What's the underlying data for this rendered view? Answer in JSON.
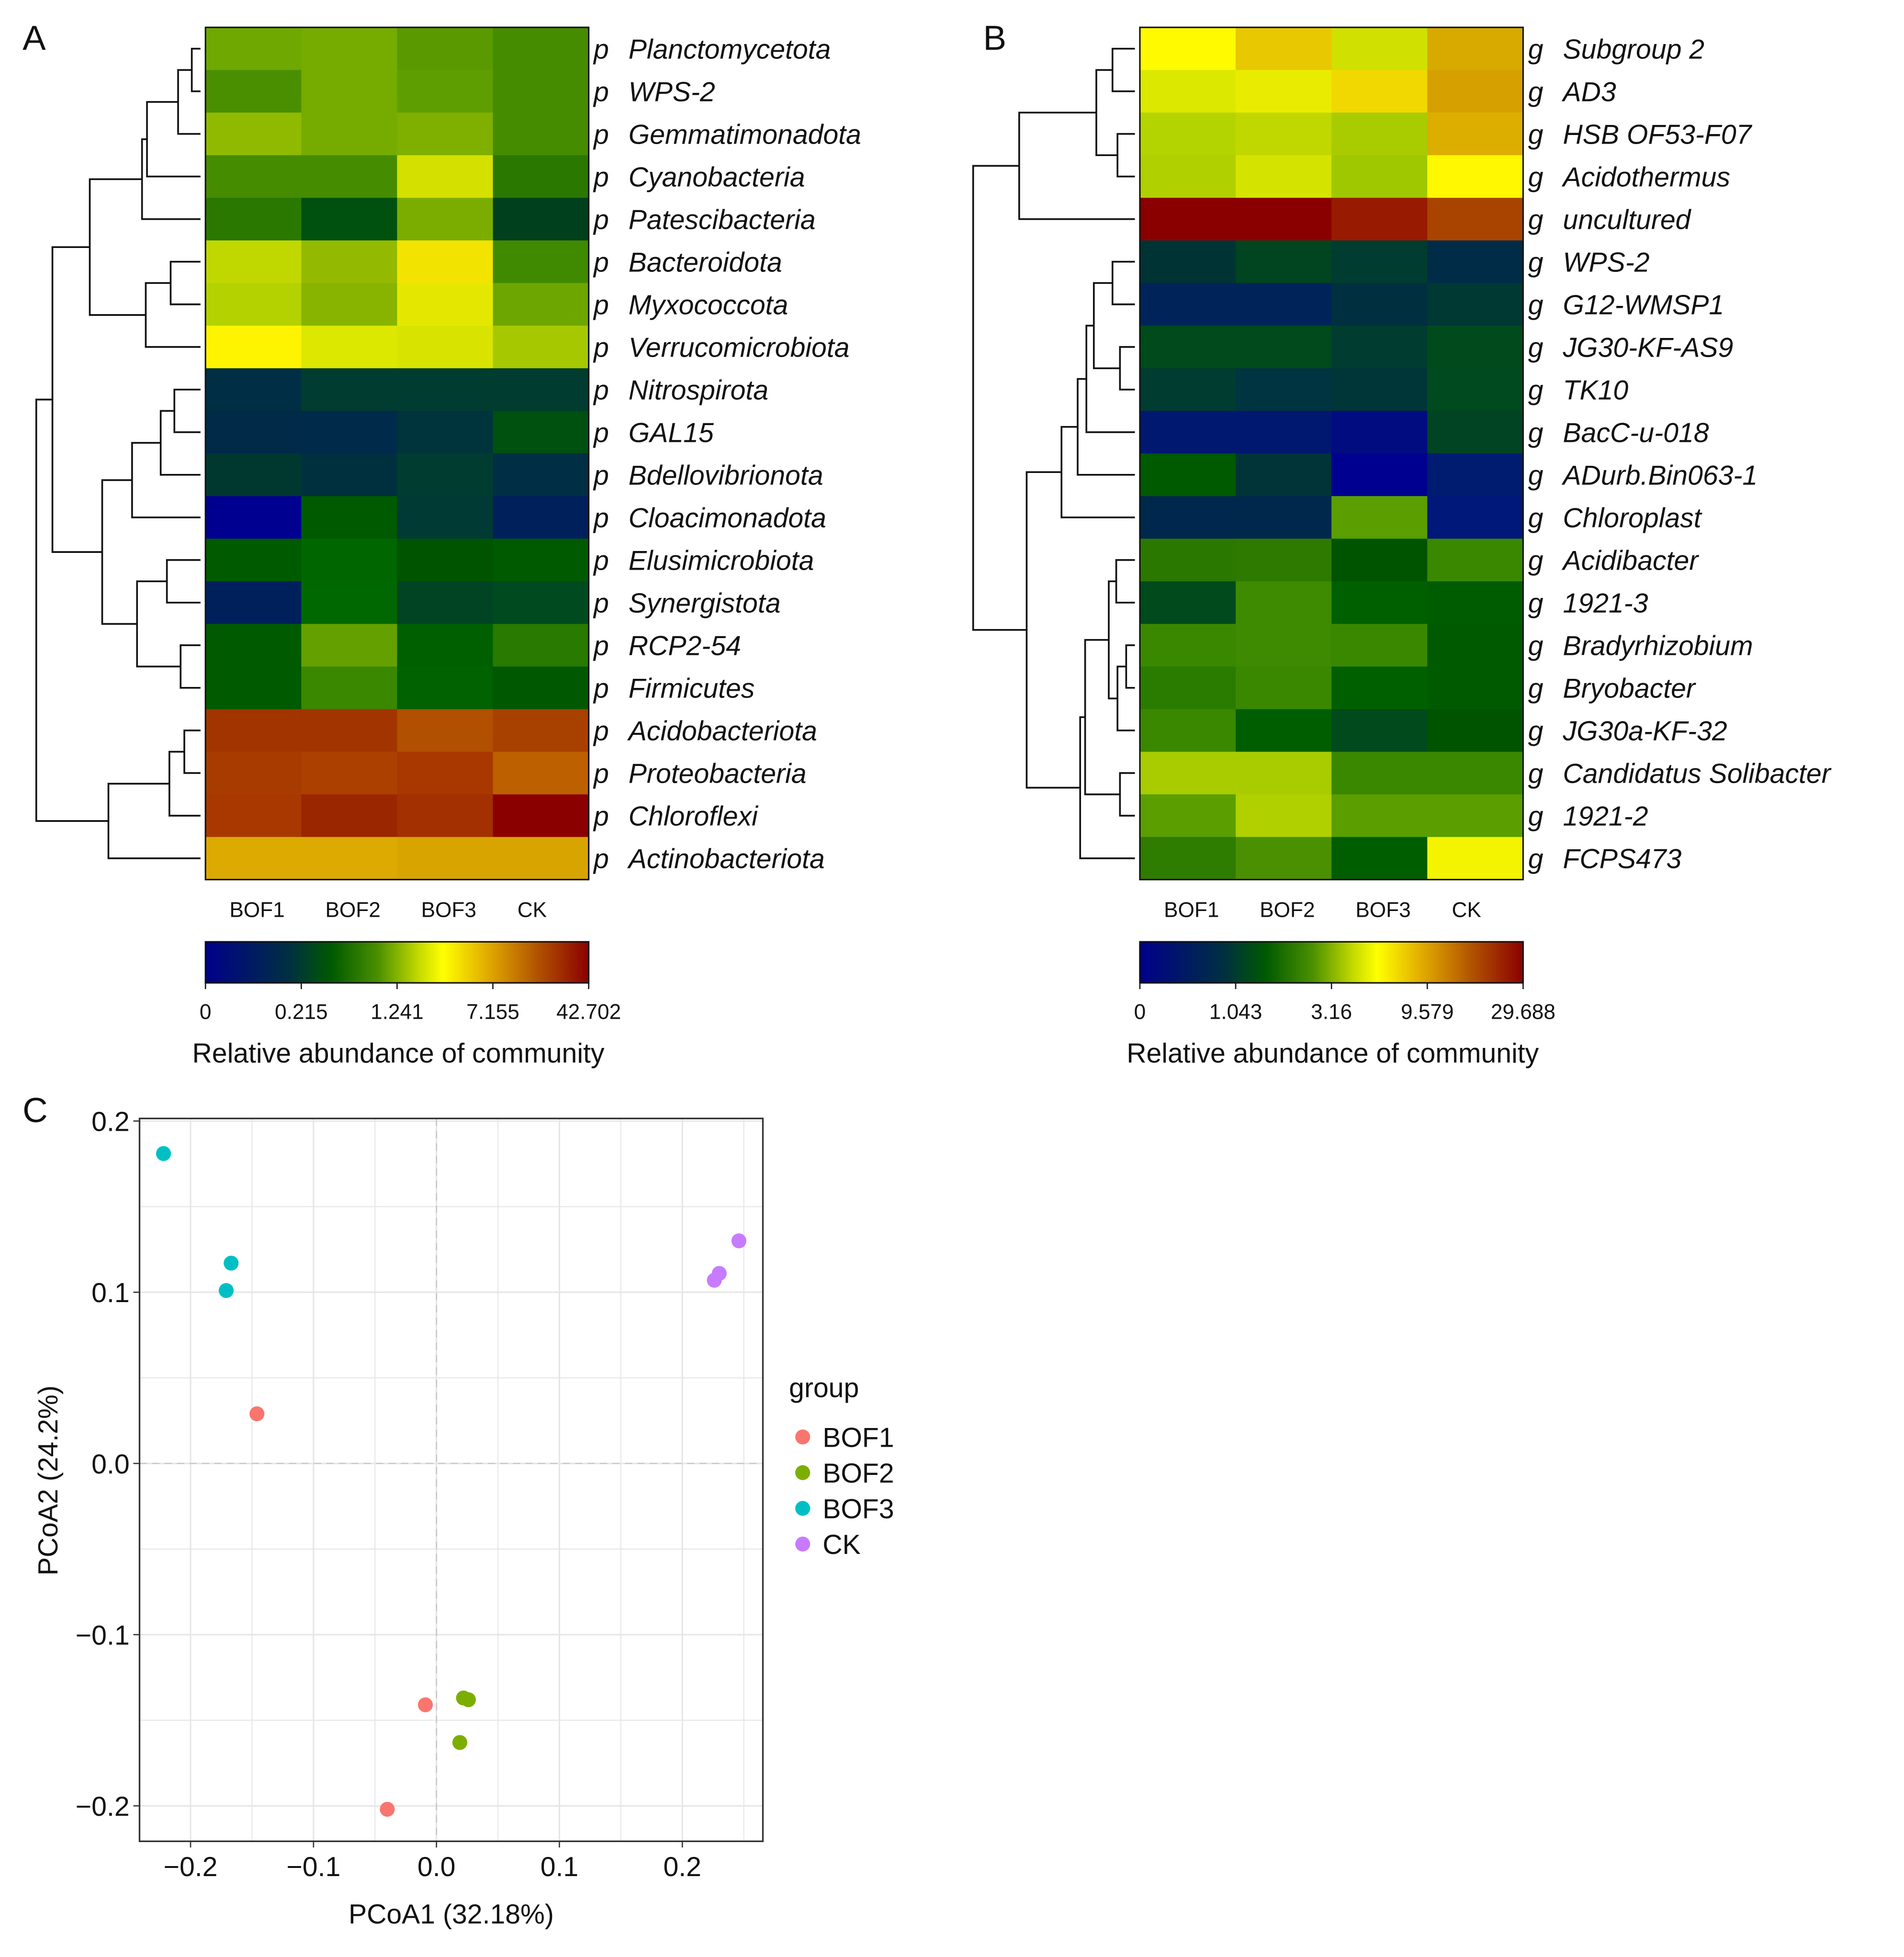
{
  "panel_labels": {
    "a": "A",
    "b": "B",
    "c": "C"
  },
  "chart_data": [
    {
      "type": "heatmap",
      "panel": "A",
      "columns": [
        "BOF1",
        "BOF2",
        "BOF3",
        "CK"
      ],
      "row_prefix": "p",
      "rows": [
        "Planctomycetota",
        "WPS-2",
        "Gemmatimonadota",
        "Cyanobacteria",
        "Patescibacteria",
        "Bacteroidota",
        "Myxococcota",
        "Verrucomicrobiota",
        "Nitrospirota",
        "GAL15",
        "Bdellovibrionota",
        "Cloacimonadota",
        "Elusimicrobiota",
        "Synergistota",
        "RCP2-54",
        "Firmicutes",
        "Acidobacteriota",
        "Proteobacteria",
        "Chloroflexi",
        "Actinobacteriota"
      ],
      "cell_colors": [
        [
          "#6fa800",
          "#76ab00",
          "#5a9a00",
          "#468c00"
        ],
        [
          "#4a8f00",
          "#76ab00",
          "#5e9e00",
          "#468c00"
        ],
        [
          "#90ba00",
          "#76ab00",
          "#7fb000",
          "#468c00"
        ],
        [
          "#468c00",
          "#468c00",
          "#d4e000",
          "#2a7800"
        ],
        [
          "#2a7800",
          "#005010",
          "#7aad00",
          "#00401c"
        ],
        [
          "#c0d800",
          "#94ba00",
          "#f2e400",
          "#3f8a00"
        ],
        [
          "#b4d200",
          "#88b400",
          "#e4e800",
          "#6ea600"
        ],
        [
          "#fff400",
          "#dce800",
          "#d8e400",
          "#a6c800"
        ],
        [
          "#002e44",
          "#003c30",
          "#003c30",
          "#003c30"
        ],
        [
          "#002a48",
          "#002a4a",
          "#00343c",
          "#005010"
        ],
        [
          "#003830",
          "#00303e",
          "#003c30",
          "#002e44"
        ],
        [
          "#000090",
          "#005a00",
          "#003a34",
          "#00205c"
        ],
        [
          "#005a00",
          "#006600",
          "#005400",
          "#005a00"
        ],
        [
          "#00205c",
          "#006800",
          "#004424",
          "#004a20"
        ],
        [
          "#005a00",
          "#64a000",
          "#006000",
          "#287a00"
        ],
        [
          "#005a00",
          "#3a8800",
          "#006200",
          "#005800"
        ],
        [
          "#a23400",
          "#a23400",
          "#b05000",
          "#a84000"
        ],
        [
          "#a83c00",
          "#ac4000",
          "#a83800",
          "#bc6000"
        ],
        [
          "#a83800",
          "#9a2600",
          "#a23000",
          "#8a0000"
        ],
        [
          "#dcaa00",
          "#dcaa00",
          "#d8a400",
          "#d8a400"
        ]
      ],
      "colorbar": {
        "ticks": [
          "0",
          "0.215",
          "1.241",
          "7.155",
          "42.702"
        ],
        "title": "Relative abundance of community"
      }
    },
    {
      "type": "heatmap",
      "panel": "B",
      "columns": [
        "BOF1",
        "BOF2",
        "BOF3",
        "CK"
      ],
      "row_prefix": "g",
      "rows": [
        "Subgroup 2",
        "AD3",
        "HSB OF53-F07",
        "Acidothermus",
        "uncultured",
        "WPS-2",
        "G12-WMSP1",
        "JG30-KF-AS9",
        "TK10",
        "BacC-u-018",
        "ADurb.Bin063-1",
        "Chloroplast",
        "Acidibacter",
        "1921-3",
        "Bradyrhizobium",
        "Bryobacter",
        "JG30a-KF-32",
        "Candidatus Solibacter",
        "1921-2",
        "FCPS473"
      ],
      "cell_colors": [
        [
          "#fffa00",
          "#e8c800",
          "#d0e000",
          "#d8aa00"
        ],
        [
          "#dce800",
          "#eaec00",
          "#f0d800",
          "#d6a000"
        ],
        [
          "#b4d400",
          "#c0d800",
          "#a8cc00",
          "#dcae00"
        ],
        [
          "#b0d000",
          "#d4e400",
          "#a0c800",
          "#fff800"
        ],
        [
          "#8a0000",
          "#8a0000",
          "#981a00",
          "#a84400"
        ],
        [
          "#003434",
          "#004420",
          "#003c30",
          "#002c48"
        ],
        [
          "#00245a",
          "#00245a",
          "#003040",
          "#003834"
        ],
        [
          "#004a1c",
          "#004a1c",
          "#003c30",
          "#004a1c"
        ],
        [
          "#003c30",
          "#003440",
          "#003638",
          "#004a20"
        ],
        [
          "#001870",
          "#001870",
          "#000c80",
          "#004424"
        ],
        [
          "#005a00",
          "#003438",
          "#000090",
          "#001c70"
        ],
        [
          "#00284c",
          "#00284c",
          "#5a9e00",
          "#00187a"
        ],
        [
          "#2a7800",
          "#2e7a00",
          "#005400",
          "#3a8800"
        ],
        [
          "#004a1c",
          "#3e8a00",
          "#006000",
          "#005c00"
        ],
        [
          "#3a8800",
          "#3e8a00",
          "#3a8800",
          "#005a00"
        ],
        [
          "#2a7c00",
          "#3a8800",
          "#006000",
          "#005a00"
        ],
        [
          "#3a8800",
          "#005e00",
          "#004a1c",
          "#005400"
        ],
        [
          "#a8cc00",
          "#a8cc00",
          "#3a8800",
          "#3a8800"
        ],
        [
          "#5a9e00",
          "#b0d000",
          "#5a9e00",
          "#5a9e00"
        ],
        [
          "#2e7c00",
          "#4a9000",
          "#005e00",
          "#f4f400"
        ]
      ],
      "colorbar": {
        "ticks": [
          "0",
          "1.043",
          "3.16",
          "9.579",
          "29.688"
        ],
        "title": "Relative abundance of community"
      }
    },
    {
      "type": "scatter",
      "panel": "C",
      "xlabel": "PCoA1 (32.18%)",
      "ylabel": "PCoA2 (24.2%)",
      "xlim": [
        -0.2415,
        0.2655
      ],
      "ylim": [
        -0.2207,
        0.2015
      ],
      "xticks": [
        -0.2,
        -0.1,
        0.0,
        0.1,
        0.2
      ],
      "xtick_labels": [
        "−0.2",
        "−0.1",
        "0.0",
        "0.1",
        "0.2"
      ],
      "yticks": [
        0.2,
        0.1,
        0.0,
        -0.1,
        -0.2
      ],
      "ytick_labels": [
        "0.2",
        "0.1",
        "0.0",
        "−0.1",
        "−0.2"
      ],
      "grid": true,
      "legend_title": "group",
      "legend_position": "right",
      "series": [
        {
          "name": "BOF1",
          "color": "#f8766d",
          "points": [
            [
              -0.146,
              0.029
            ],
            [
              -0.009,
              -0.141
            ],
            [
              -0.04,
              -0.202
            ]
          ]
        },
        {
          "name": "BOF2",
          "color": "#7cae00",
          "points": [
            [
              0.022,
              -0.137
            ],
            [
              0.026,
              -0.138
            ],
            [
              0.019,
              -0.163
            ]
          ]
        },
        {
          "name": "BOF3",
          "color": "#00bfc4",
          "points": [
            [
              -0.222,
              0.181
            ],
            [
              -0.167,
              0.117
            ],
            [
              -0.171,
              0.101
            ]
          ]
        },
        {
          "name": "CK",
          "color": "#c77cff",
          "points": [
            [
              0.246,
              0.13
            ],
            [
              0.23,
              0.111
            ],
            [
              0.226,
              0.107
            ]
          ]
        }
      ]
    }
  ]
}
